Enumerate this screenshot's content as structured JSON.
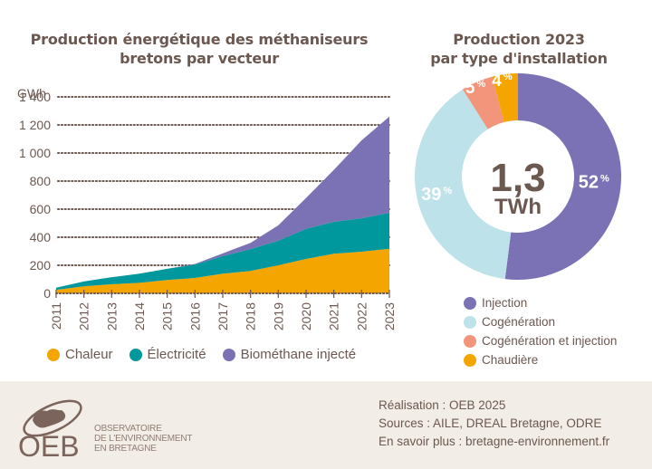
{
  "chart_data": [
    {
      "type": "area",
      "stacked": true,
      "title": "Production énergétique des méthaniseurs bretons par vecteur",
      "xlabel": "",
      "ylabel": "GWh",
      "ylim": [
        0,
        1400
      ],
      "yticks": [
        0,
        200,
        400,
        600,
        800,
        1000,
        1200,
        1400
      ],
      "ytick_labels": [
        "0",
        "200",
        "400",
        "600",
        "800",
        "1 000",
        "1 200",
        "1 400"
      ],
      "grid": true,
      "legend": "bottom",
      "x": [
        "2011",
        "2012",
        "2013",
        "2014",
        "2015",
        "2016",
        "2017",
        "2018",
        "2019",
        "2020",
        "2021",
        "2022",
        "2023"
      ],
      "series": [
        {
          "name": "Chaleur",
          "color": "#f5a500",
          "values": [
            25,
            50,
            65,
            75,
            95,
            110,
            140,
            160,
            200,
            245,
            282,
            297,
            318
          ]
        },
        {
          "name": "Électricité",
          "color": "#00979d",
          "values": [
            15,
            35,
            50,
            65,
            80,
            95,
            125,
            155,
            175,
            215,
            228,
            238,
            256
          ]
        },
        {
          "name": "Biométhane injecté",
          "color": "#7a72b4",
          "values": [
            0,
            0,
            0,
            0,
            0,
            5,
            20,
            45,
            110,
            220,
            370,
            555,
            686
          ]
        }
      ]
    },
    {
      "type": "pie",
      "donut": true,
      "title": "Production 2023 par type d'installation",
      "center_label": {
        "value": "1,3",
        "unit": "TWh"
      },
      "legend": "bottom",
      "slices": [
        {
          "name": "Injection",
          "value": 52,
          "label": "52",
          "color": "#7a72b4"
        },
        {
          "name": "Cogénération",
          "value": 39,
          "label": "39",
          "color": "#bde2ea"
        },
        {
          "name": "Cogénération et injection",
          "value": 5,
          "label": "5",
          "color": "#f2957a"
        },
        {
          "name": "Chaudière",
          "value": 4,
          "label": "4",
          "color": "#f5a500"
        }
      ],
      "percent_symbol": "%"
    }
  ],
  "titles": {
    "left_line1": "Production énergétique des méthaniseurs",
    "left_line2": "bretons par vecteur",
    "right_line1": "Production 2023",
    "right_line2": "par type d'installation"
  },
  "footer": {
    "logo": {
      "abbr": "OEB",
      "line1": "OBSERVATOIRE",
      "line2": "DE L'ENVIRONNEMENT",
      "line3": "EN BRETAGNE",
      "icon": "brittany-map-icon"
    },
    "credits": [
      "Réalisation : OEB 2025",
      "Sources : AILE, DREAL Bretagne, ODRE",
      "En savoir plus : bretagne-environnement.fr"
    ]
  },
  "colors": {
    "text": "#6b5850",
    "footer_bg": "#f2ede7"
  }
}
